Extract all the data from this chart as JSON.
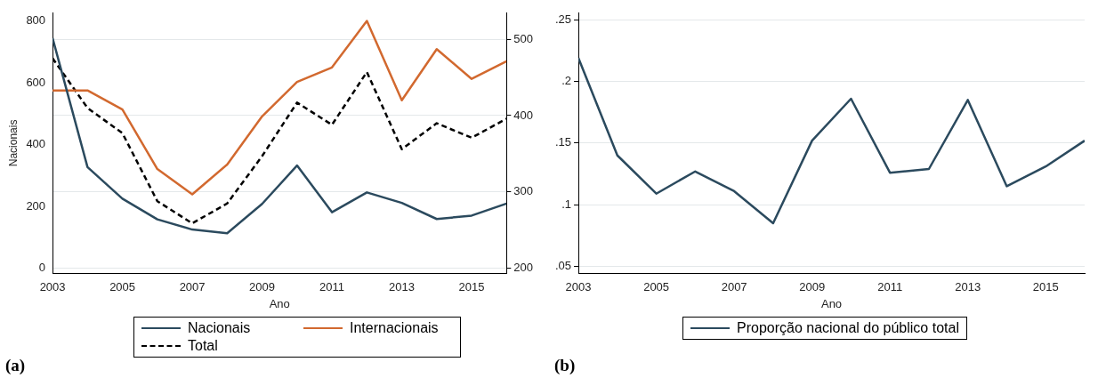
{
  "chart_data": [
    {
      "type": "line",
      "xlabel": "Ano",
      "ylabel": "Nacionais",
      "x": [
        2003,
        2004,
        2005,
        2006,
        2007,
        2008,
        2009,
        2010,
        2011,
        2012,
        2013,
        2014,
        2015,
        2016
      ],
      "series": [
        {
          "name": "Nacionais",
          "color": "#2b4a5e",
          "values": [
            745,
            328,
            226,
            159,
            126,
            114,
            209,
            333,
            182,
            246,
            212,
            160,
            171,
            210
          ]
        },
        {
          "name": "Internacionais",
          "color": "#d2692f",
          "axis": "y2",
          "values": [
            433,
            433,
            408,
            330,
            297,
            336,
            399,
            444,
            463,
            524,
            420,
            487,
            448,
            471
          ]
        },
        {
          "name": "Total",
          "color": "#000000",
          "axis": "y2",
          "line_style": "dashed",
          "values": [
            475,
            410,
            377,
            288,
            259,
            285,
            347,
            417,
            388,
            457,
            356,
            390,
            371,
            396
          ]
        }
      ],
      "xlim": [
        2003,
        2016
      ],
      "xticks": [
        2003,
        2005,
        2007,
        2009,
        2011,
        2013,
        2015
      ],
      "ylim": [
        -17,
        828
      ],
      "yticks": [
        0,
        200,
        400,
        600,
        800
      ],
      "y2lim": [
        193,
        535
      ],
      "y2ticks": [
        200,
        300,
        400,
        500
      ],
      "grid": true,
      "legend": "bottom",
      "annotations": [
        "(a)"
      ]
    },
    {
      "type": "line",
      "xlabel": "Ano",
      "x": [
        2003,
        2004,
        2005,
        2006,
        2007,
        2008,
        2009,
        2010,
        2011,
        2012,
        2013,
        2014,
        2015,
        2016
      ],
      "series": [
        {
          "name": "Proporção nacional do público total",
          "color": "#2b4a5e",
          "values": [
            0.219,
            0.14,
            0.109,
            0.127,
            0.111,
            0.085,
            0.152,
            0.186,
            0.126,
            0.129,
            0.185,
            0.115,
            0.131,
            0.152
          ]
        }
      ],
      "xlim": [
        2003,
        2016
      ],
      "xticks": [
        2003,
        2005,
        2007,
        2009,
        2011,
        2013,
        2015
      ],
      "ylim": [
        0.044,
        0.256
      ],
      "yticks": [
        {
          "value": 0.05,
          "label": ".05"
        },
        {
          "value": 0.1,
          "label": ".1"
        },
        {
          "value": 0.15,
          "label": ".15"
        },
        {
          "value": 0.2,
          "label": ".2"
        },
        {
          "value": 0.25,
          "label": ".25"
        }
      ],
      "grid": true,
      "legend": "bottom",
      "annotations": [
        "(b)"
      ]
    }
  ]
}
